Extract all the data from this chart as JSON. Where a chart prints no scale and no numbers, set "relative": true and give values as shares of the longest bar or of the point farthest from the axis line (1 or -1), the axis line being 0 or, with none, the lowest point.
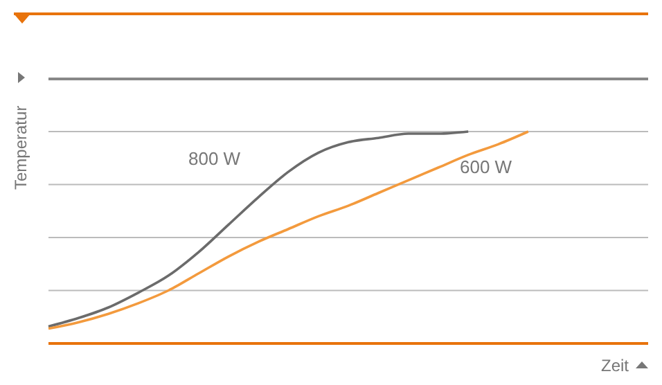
{
  "chart_data": {
    "type": "line",
    "relative": true,
    "ylabel": "Temperatur",
    "xlabel": "Zeit",
    "grid": "y",
    "legend": false,
    "marker": "none",
    "line_style": "solid",
    "categories": [
      null,
      null,
      null,
      null,
      null,
      null,
      null,
      null,
      null,
      null,
      null,
      null,
      null,
      null,
      null,
      null,
      null,
      null,
      null,
      null,
      null
    ],
    "series": [
      {
        "name": "800 W",
        "color": "#6b6b6b",
        "values": [
          0.08,
          0.12,
          0.17,
          0.24,
          0.32,
          0.43,
          0.56,
          0.69,
          0.81,
          0.9,
          0.95,
          0.97,
          0.99,
          0.99,
          1,
          null,
          null,
          null,
          null,
          null,
          null
        ]
      },
      {
        "name": "600 W",
        "color": "#f39a3d",
        "values": [
          0.07,
          0.1,
          0.14,
          0.19,
          0.25,
          0.33,
          0.41,
          0.48,
          0.54,
          0.6,
          0.65,
          0.71,
          0.77,
          0.83,
          0.89,
          0.94,
          1,
          null,
          null,
          null,
          null
        ]
      }
    ]
  }
}
